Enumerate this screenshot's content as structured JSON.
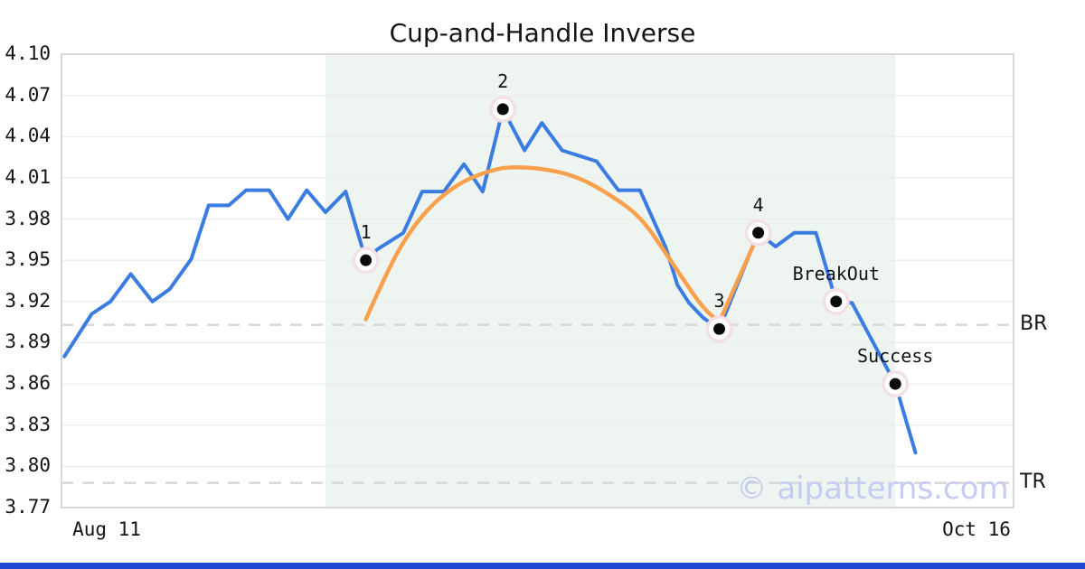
{
  "title": "Cup-and-Handle Inverse",
  "watermark": "© aipatterns.com",
  "colors": {
    "blue_line": "#3a7ce2",
    "orange_line": "#f8a04c",
    "marker_halo": "#f3e0e5",
    "marker_ring": "#ffffff",
    "marker_dot": "#0a0a0a",
    "grid": "#ececec",
    "plot_border": "#d8d8d8",
    "dashed_level": "#d8d8d8",
    "shade_region": "#eef5f1",
    "watermark": "#c6cbf2",
    "text": "#141414",
    "brand_bar": "#2348d2",
    "background": "#ffffff"
  },
  "chart_data": {
    "type": "line",
    "title": "Cup-and-Handle Inverse",
    "x_axis": {
      "tick_labels": [
        "Aug 11",
        "Oct 16"
      ],
      "domain_days": [
        0,
        66
      ],
      "grid": false
    },
    "y_axis": {
      "ticks": [
        4.1,
        4.07,
        4.04,
        4.01,
        3.98,
        3.95,
        3.92,
        3.89,
        3.86,
        3.83,
        3.8,
        3.77
      ],
      "ylim": [
        3.77,
        4.1
      ],
      "grid": true
    },
    "legend": "none",
    "shaded_region_days": [
      18.3,
      57.8
    ],
    "levels": [
      {
        "label": "BR",
        "value": 3.903
      },
      {
        "label": "TR",
        "value": 3.788
      }
    ],
    "series": [
      {
        "name": "price",
        "draw": "polyline",
        "color_key": "blue_line",
        "width": 4,
        "points": [
          [
            0.2,
            3.88
          ],
          [
            2.1,
            3.911
          ],
          [
            3.4,
            3.92
          ],
          [
            4.8,
            3.94
          ],
          [
            6.3,
            3.92
          ],
          [
            7.5,
            3.929
          ],
          [
            9.0,
            3.951
          ],
          [
            10.2,
            3.99
          ],
          [
            11.6,
            3.99
          ],
          [
            12.8,
            4.001
          ],
          [
            14.4,
            4.001
          ],
          [
            15.7,
            3.98
          ],
          [
            17.0,
            4.001
          ],
          [
            18.3,
            3.985
          ],
          [
            19.7,
            4.0
          ],
          [
            21.1,
            3.95
          ],
          [
            21.9,
            3.958
          ],
          [
            23.7,
            3.97
          ],
          [
            25.0,
            4.0
          ],
          [
            26.5,
            4.0
          ],
          [
            27.9,
            4.02
          ],
          [
            29.2,
            4.0
          ],
          [
            30.6,
            4.06
          ],
          [
            32.1,
            4.03
          ],
          [
            33.3,
            4.05
          ],
          [
            34.7,
            4.03
          ],
          [
            37.1,
            4.022
          ],
          [
            38.6,
            4.001
          ],
          [
            40.1,
            4.001
          ],
          [
            41.9,
            3.959
          ],
          [
            42.7,
            3.932
          ],
          [
            43.5,
            3.919
          ],
          [
            44.5,
            3.908
          ],
          [
            45.6,
            3.9
          ],
          [
            48.3,
            3.97
          ],
          [
            49.5,
            3.96
          ],
          [
            50.8,
            3.97
          ],
          [
            52.3,
            3.97
          ],
          [
            53.7,
            3.92
          ],
          [
            54.8,
            3.919
          ],
          [
            57.8,
            3.86
          ],
          [
            59.2,
            3.81
          ]
        ]
      },
      {
        "name": "cup-arc",
        "draw": "curve",
        "color_key": "orange_line",
        "width": 4.5,
        "points": [
          [
            21.1,
            3.907
          ],
          [
            22.7,
            3.945
          ],
          [
            24.2,
            3.972
          ],
          [
            25.8,
            3.992
          ],
          [
            27.7,
            4.007
          ],
          [
            29.6,
            4.015
          ],
          [
            31.0,
            4.018
          ],
          [
            33.3,
            4.017
          ],
          [
            35.8,
            4.011
          ],
          [
            38.3,
            3.996
          ],
          [
            40.2,
            3.981
          ],
          [
            41.9,
            3.955
          ],
          [
            43.3,
            3.933
          ],
          [
            44.5,
            3.915
          ],
          [
            45.6,
            3.905
          ]
        ]
      },
      {
        "name": "handle-line",
        "draw": "polyline",
        "color_key": "orange_line",
        "width": 4.5,
        "points": [
          [
            45.6,
            3.905
          ],
          [
            48.3,
            3.969
          ]
        ]
      }
    ],
    "markers": [
      {
        "name": "point-1",
        "label": "1",
        "day": 21.1,
        "value": 3.95
      },
      {
        "name": "point-2",
        "label": "2",
        "day": 30.6,
        "value": 4.06
      },
      {
        "name": "point-3",
        "label": "3",
        "day": 45.6,
        "value": 3.9
      },
      {
        "name": "point-4",
        "label": "4",
        "day": 48.3,
        "value": 3.97
      },
      {
        "name": "breakout",
        "label": "BreakOut",
        "day": 53.7,
        "value": 3.92
      },
      {
        "name": "success",
        "label": "Success",
        "day": 57.8,
        "value": 3.86
      }
    ]
  }
}
